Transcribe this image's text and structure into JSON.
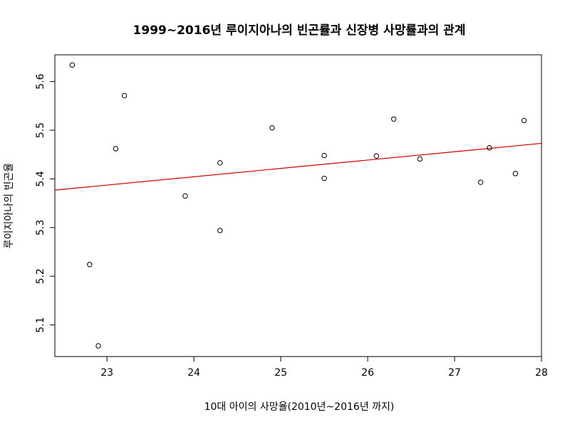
{
  "chart_data": {
    "type": "scatter",
    "title": "1999~2016년 루이지아나의 빈곤률과 신장병 사망률과의 관계",
    "xlabel": "10대 아이의 사망율(2010년~2016년 까지)",
    "ylabel": "루이지아나의 빈곤율",
    "xlim": [
      22.4,
      28.0
    ],
    "ylim": [
      5.035,
      5.655
    ],
    "x_ticks": [
      23,
      24,
      25,
      26,
      27,
      28
    ],
    "y_ticks": [
      5.1,
      5.2,
      5.3,
      5.4,
      5.5,
      5.6
    ],
    "x_tick_labels": [
      "23",
      "24",
      "25",
      "26",
      "27",
      "28"
    ],
    "y_tick_labels": [
      "5.1",
      "5.2",
      "5.3",
      "5.4",
      "5.5",
      "5.6"
    ],
    "grid": false,
    "legend": "none",
    "colors": {
      "points": "#000000",
      "regression_line": "#cc0000",
      "frame": "#000000"
    },
    "series": [
      {
        "marker": "open-circle",
        "x": [
          22.6,
          22.8,
          22.9,
          23.1,
          23.2,
          23.9,
          24.3,
          24.3,
          24.9,
          25.5,
          25.5,
          26.1,
          26.3,
          26.6,
          27.3,
          27.4,
          27.7,
          27.8
        ],
        "y": [
          5.634,
          5.224,
          5.057,
          5.462,
          5.571,
          5.365,
          5.433,
          5.294,
          5.505,
          5.448,
          5.401,
          5.447,
          5.523,
          5.441,
          5.393,
          5.464,
          5.411,
          5.52
        ]
      }
    ],
    "regression_line": {
      "x": [
        22.4,
        28.0
      ],
      "y": [
        5.377,
        5.473
      ]
    }
  }
}
